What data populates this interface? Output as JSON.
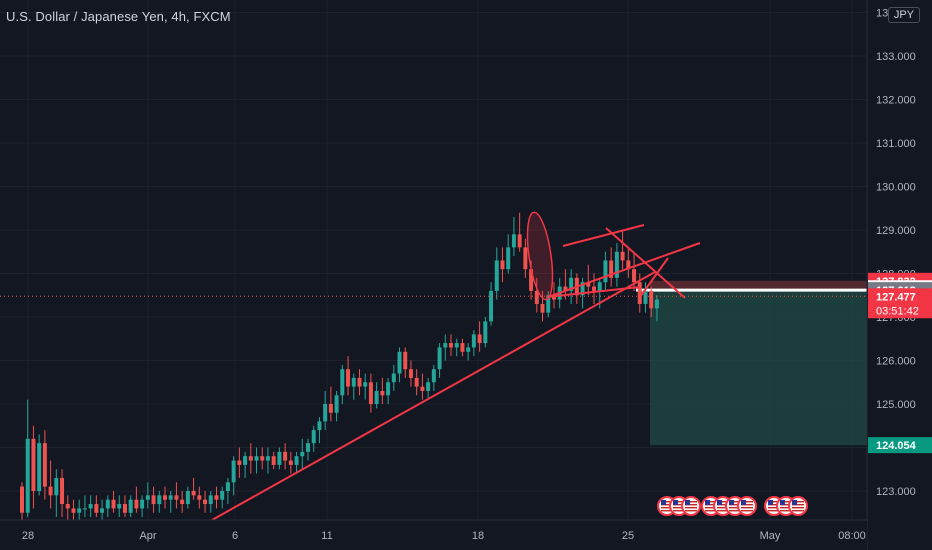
{
  "header": {
    "title": "U.S. Dollar / Japanese Yen, 4h, FXCM",
    "currency": "JPY"
  },
  "colors": {
    "background": "#131722",
    "up": "#26a69a",
    "down": "#ef5350",
    "drawing": "#f23645",
    "axis_text": "#b2b5be"
  },
  "chart_data": {
    "type": "candlestick",
    "symbol": "USDJPY",
    "timeframe": "4h",
    "ylim": [
      122.3,
      134.2
    ],
    "y_ticks": [
      "123.000",
      "124.000",
      "125.000",
      "126.000",
      "127.000",
      "128.000",
      "129.000",
      "130.000",
      "131.000",
      "132.000",
      "133.000",
      "134.000"
    ],
    "x_ticks": [
      "28",
      "Apr",
      "6",
      "11",
      "18",
      "25",
      "May",
      "08:00"
    ],
    "price_labels": {
      "stop": "127.832",
      "mid": "127.661",
      "entry": "127.618",
      "last": "127.477",
      "countdown": "03:51:42",
      "target": "124.054"
    },
    "candles_ohlc": [
      [
        123.1,
        123.2,
        122.3,
        122.5
      ],
      [
        122.5,
        125.1,
        122.4,
        124.2
      ],
      [
        124.2,
        124.5,
        122.6,
        123.0
      ],
      [
        123.0,
        124.3,
        122.9,
        124.1
      ],
      [
        124.1,
        124.4,
        122.8,
        123.1
      ],
      [
        123.1,
        123.7,
        122.6,
        122.9
      ],
      [
        122.9,
        123.5,
        122.4,
        123.3
      ],
      [
        123.3,
        123.5,
        122.4,
        122.7
      ],
      [
        122.7,
        122.9,
        122.3,
        122.6
      ],
      [
        122.6,
        122.8,
        122.3,
        122.5
      ],
      [
        122.5,
        122.8,
        122.3,
        122.6
      ],
      [
        122.6,
        122.9,
        122.4,
        122.6
      ],
      [
        122.6,
        122.9,
        122.4,
        122.7
      ],
      [
        122.7,
        122.9,
        122.4,
        122.5
      ],
      [
        122.5,
        122.8,
        122.3,
        122.6
      ],
      [
        122.6,
        122.9,
        122.4,
        122.8
      ],
      [
        122.8,
        123.0,
        122.5,
        122.6
      ],
      [
        122.6,
        122.9,
        122.4,
        122.7
      ],
      [
        122.7,
        122.9,
        122.4,
        122.5
      ],
      [
        122.5,
        122.9,
        122.4,
        122.8
      ],
      [
        122.8,
        123.1,
        122.5,
        122.6
      ],
      [
        122.6,
        122.9,
        122.4,
        122.8
      ],
      [
        122.8,
        123.2,
        122.6,
        122.9
      ],
      [
        122.9,
        123.1,
        122.5,
        122.7
      ],
      [
        122.7,
        123.0,
        122.5,
        122.9
      ],
      [
        122.9,
        123.1,
        122.6,
        122.8
      ],
      [
        122.8,
        123.0,
        122.5,
        122.9
      ],
      [
        122.9,
        123.2,
        122.6,
        122.8
      ],
      [
        122.8,
        123.0,
        122.5,
        122.7
      ],
      [
        122.7,
        123.1,
        122.6,
        123.0
      ],
      [
        123.0,
        123.3,
        122.8,
        122.9
      ],
      [
        122.9,
        123.1,
        122.6,
        122.8
      ],
      [
        122.8,
        123.0,
        122.5,
        122.7
      ],
      [
        122.7,
        123.0,
        122.5,
        122.9
      ],
      [
        122.9,
        123.1,
        122.6,
        122.8
      ],
      [
        122.8,
        123.1,
        122.6,
        123.0
      ],
      [
        123.0,
        123.3,
        122.7,
        123.2
      ],
      [
        123.2,
        123.8,
        122.9,
        123.7
      ],
      [
        123.7,
        124.0,
        123.3,
        123.6
      ],
      [
        123.6,
        123.9,
        123.3,
        123.8
      ],
      [
        123.8,
        124.1,
        123.4,
        123.7
      ],
      [
        123.7,
        124.0,
        123.4,
        123.8
      ],
      [
        123.8,
        124.0,
        123.5,
        123.7
      ],
      [
        123.7,
        124.0,
        123.4,
        123.8
      ],
      [
        123.8,
        123.9,
        123.5,
        123.6
      ],
      [
        123.6,
        124.0,
        123.5,
        123.9
      ],
      [
        123.9,
        124.1,
        123.5,
        123.7
      ],
      [
        123.7,
        123.9,
        123.4,
        123.6
      ],
      [
        123.6,
        123.9,
        123.4,
        123.8
      ],
      [
        123.8,
        124.2,
        123.5,
        123.9
      ],
      [
        123.9,
        124.2,
        123.7,
        124.1
      ],
      [
        124.1,
        124.5,
        123.9,
        124.4
      ],
      [
        124.4,
        124.7,
        124.1,
        124.6
      ],
      [
        124.6,
        125.3,
        124.4,
        125.0
      ],
      [
        125.0,
        125.4,
        124.6,
        124.8
      ],
      [
        124.8,
        125.3,
        124.6,
        125.2
      ],
      [
        125.2,
        125.9,
        125.0,
        125.8
      ],
      [
        125.8,
        126.1,
        125.2,
        125.4
      ],
      [
        125.4,
        125.7,
        125.1,
        125.6
      ],
      [
        125.6,
        125.8,
        125.2,
        125.4
      ],
      [
        125.4,
        125.7,
        125.1,
        125.5
      ],
      [
        125.5,
        125.7,
        124.8,
        125.0
      ],
      [
        125.0,
        125.5,
        124.9,
        125.3
      ],
      [
        125.3,
        125.6,
        125.0,
        125.2
      ],
      [
        125.2,
        125.6,
        125.0,
        125.5
      ],
      [
        125.5,
        125.9,
        125.3,
        125.7
      ],
      [
        125.7,
        126.3,
        125.5,
        126.2
      ],
      [
        126.2,
        126.3,
        125.6,
        125.8
      ],
      [
        125.8,
        126.0,
        125.4,
        125.6
      ],
      [
        125.6,
        125.8,
        125.2,
        125.4
      ],
      [
        125.4,
        125.7,
        125.1,
        125.3
      ],
      [
        125.3,
        125.6,
        125.1,
        125.5
      ],
      [
        125.5,
        125.9,
        125.3,
        125.8
      ],
      [
        125.8,
        126.4,
        125.6,
        126.3
      ],
      [
        126.3,
        126.6,
        126.0,
        126.4
      ],
      [
        126.4,
        126.6,
        126.1,
        126.3
      ],
      [
        126.3,
        126.5,
        126.1,
        126.4
      ],
      [
        126.4,
        126.5,
        126.1,
        126.2
      ],
      [
        126.2,
        126.4,
        126.0,
        126.3
      ],
      [
        126.3,
        126.7,
        126.1,
        126.6
      ],
      [
        126.6,
        126.9,
        126.2,
        126.4
      ],
      [
        126.4,
        127.0,
        126.3,
        126.9
      ],
      [
        126.9,
        127.8,
        126.8,
        127.6
      ],
      [
        127.6,
        128.6,
        127.4,
        128.3
      ],
      [
        128.3,
        128.6,
        127.8,
        128.1
      ],
      [
        128.1,
        128.9,
        128.0,
        128.6
      ],
      [
        128.6,
        129.3,
        128.4,
        128.9
      ],
      [
        128.9,
        129.4,
        128.5,
        128.6
      ],
      [
        128.6,
        128.8,
        127.9,
        128.1
      ],
      [
        128.1,
        128.3,
        127.4,
        127.6
      ],
      [
        127.6,
        127.9,
        127.1,
        127.3
      ],
      [
        127.3,
        127.6,
        126.9,
        127.1
      ],
      [
        127.1,
        127.6,
        127.0,
        127.5
      ],
      [
        127.5,
        127.8,
        127.2,
        127.4
      ],
      [
        127.4,
        127.9,
        127.2,
        127.7
      ],
      [
        127.7,
        128.1,
        127.4,
        127.6
      ],
      [
        127.6,
        128.1,
        127.3,
        127.9
      ],
      [
        127.9,
        128.0,
        127.3,
        127.5
      ],
      [
        127.5,
        127.9,
        127.2,
        127.8
      ],
      [
        127.8,
        128.2,
        127.5,
        127.7
      ],
      [
        127.7,
        128.0,
        127.3,
        127.6
      ],
      [
        127.6,
        127.9,
        127.2,
        127.8
      ],
      [
        127.8,
        128.5,
        127.6,
        128.3
      ],
      [
        128.3,
        128.6,
        127.7,
        127.9
      ],
      [
        127.9,
        128.7,
        127.7,
        128.5
      ],
      [
        128.5,
        129.0,
        128.1,
        128.3
      ],
      [
        128.3,
        128.6,
        127.9,
        128.1
      ],
      [
        128.1,
        128.5,
        127.6,
        127.8
      ],
      [
        127.8,
        128.0,
        127.1,
        127.3
      ],
      [
        127.3,
        127.8,
        127.1,
        127.6
      ],
      [
        127.6,
        127.7,
        127.0,
        127.2
      ],
      [
        127.2,
        127.5,
        126.9,
        127.4
      ]
    ],
    "drawings": {
      "trendlines": [
        [
          [
            212,
            520
          ],
          [
            655,
            272
          ]
        ],
        [
          [
            547,
            297
          ],
          [
            640,
            287
          ]
        ],
        [
          [
            548,
            297
          ],
          [
            700,
            243
          ]
        ],
        [
          [
            563,
            246
          ],
          [
            644,
            225
          ]
        ],
        [
          [
            606,
            228
          ],
          [
            685,
            298
          ]
        ],
        [
          [
            640,
            297
          ],
          [
            668,
            258
          ]
        ]
      ],
      "ellipse": {
        "cx": 540,
        "cy": 256,
        "rx": 11,
        "ry": 44
      },
      "target_zone": {
        "x0": 650,
        "x1": 867,
        "price_top": 127.618,
        "price_bottom": 124.054
      },
      "stop_zone": {
        "x0": 650,
        "x1": 867,
        "price_top": 127.832,
        "price_bottom": 127.618
      }
    }
  }
}
